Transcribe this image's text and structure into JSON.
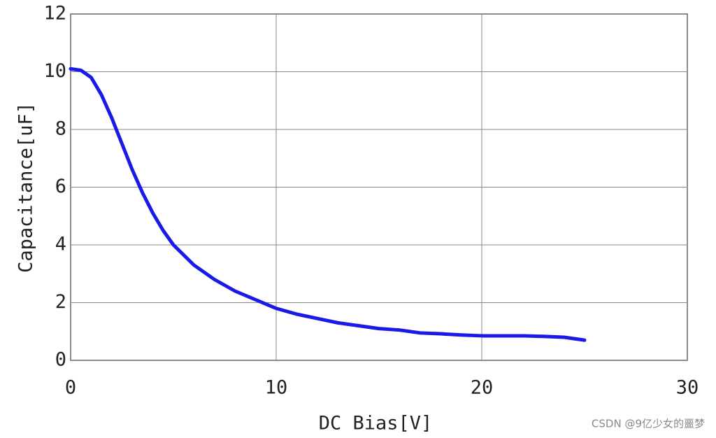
{
  "chart_data": {
    "type": "line",
    "x_label": "DC Bias[V]",
    "y_label": "Capacitance[uF]",
    "x": [
      0,
      0.5,
      1,
      1.5,
      2,
      2.5,
      3,
      3.5,
      4,
      4.5,
      5,
      6,
      7,
      8,
      9,
      10,
      11,
      12,
      13,
      14,
      15,
      16,
      17,
      18,
      19,
      20,
      21,
      22,
      23,
      24,
      25
    ],
    "series": [
      {
        "color": "#1a1ae6",
        "values": [
          10.1,
          10.05,
          9.8,
          9.2,
          8.4,
          7.5,
          6.6,
          5.8,
          5.1,
          4.5,
          4.0,
          3.3,
          2.8,
          2.4,
          2.1,
          1.8,
          1.6,
          1.45,
          1.3,
          1.2,
          1.1,
          1.05,
          0.95,
          0.92,
          0.88,
          0.85,
          0.85,
          0.85,
          0.83,
          0.8,
          0.7
        ]
      }
    ],
    "xlim": [
      0,
      30
    ],
    "xticks": [
      0,
      10,
      20,
      30
    ],
    "ylim": [
      0,
      12
    ],
    "yticks": [
      0,
      2,
      4,
      6,
      8,
      10,
      12
    ],
    "grid": true
  },
  "watermark": "CSDN @9亿少女的噩梦"
}
